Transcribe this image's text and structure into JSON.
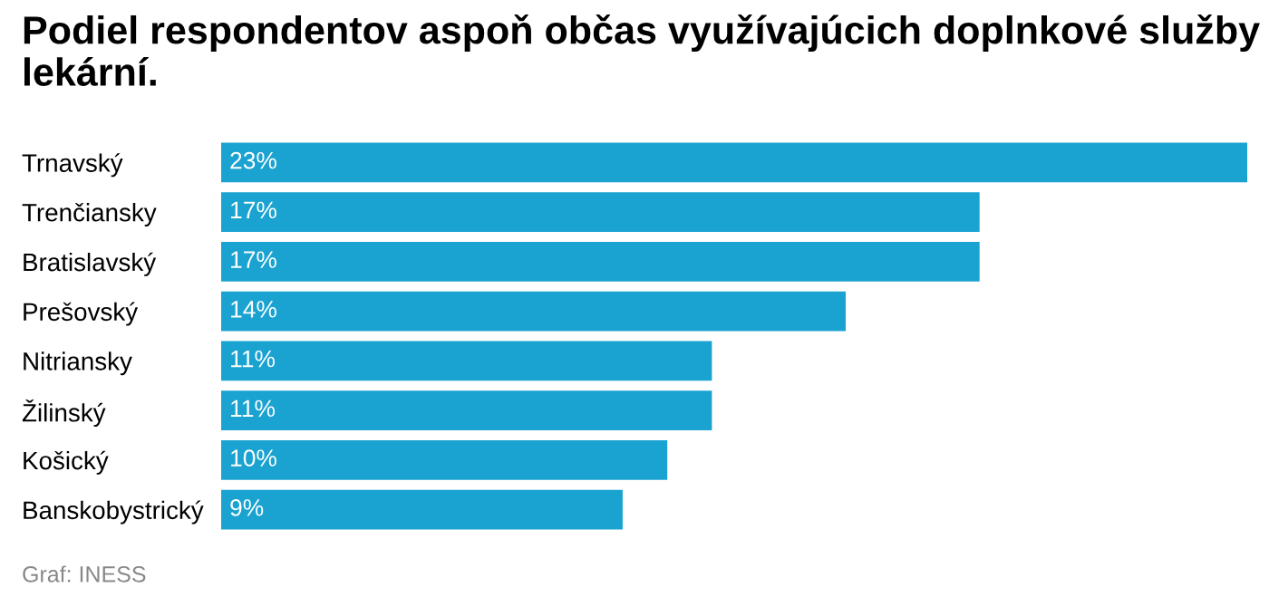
{
  "chart_data": {
    "type": "bar",
    "orientation": "horizontal",
    "title": "Podiel respondentov aspoň občas využívajúcich doplnkové služby lekární.",
    "categories": [
      "Trnavský",
      "Trenčiansky",
      "Bratislavský",
      "Prešovský",
      "Nitriansky",
      "Žilinský",
      "Košický",
      "Banskobystrický"
    ],
    "values": [
      23,
      17,
      17,
      14,
      11,
      11,
      10,
      9
    ],
    "value_labels": [
      "23%",
      "17%",
      "17%",
      "14%",
      "11%",
      "11%",
      "10%",
      "9%"
    ],
    "color": "#1aa3d1",
    "tick_labels": "y",
    "annotations": [
      "Graf: INESS"
    ]
  }
}
